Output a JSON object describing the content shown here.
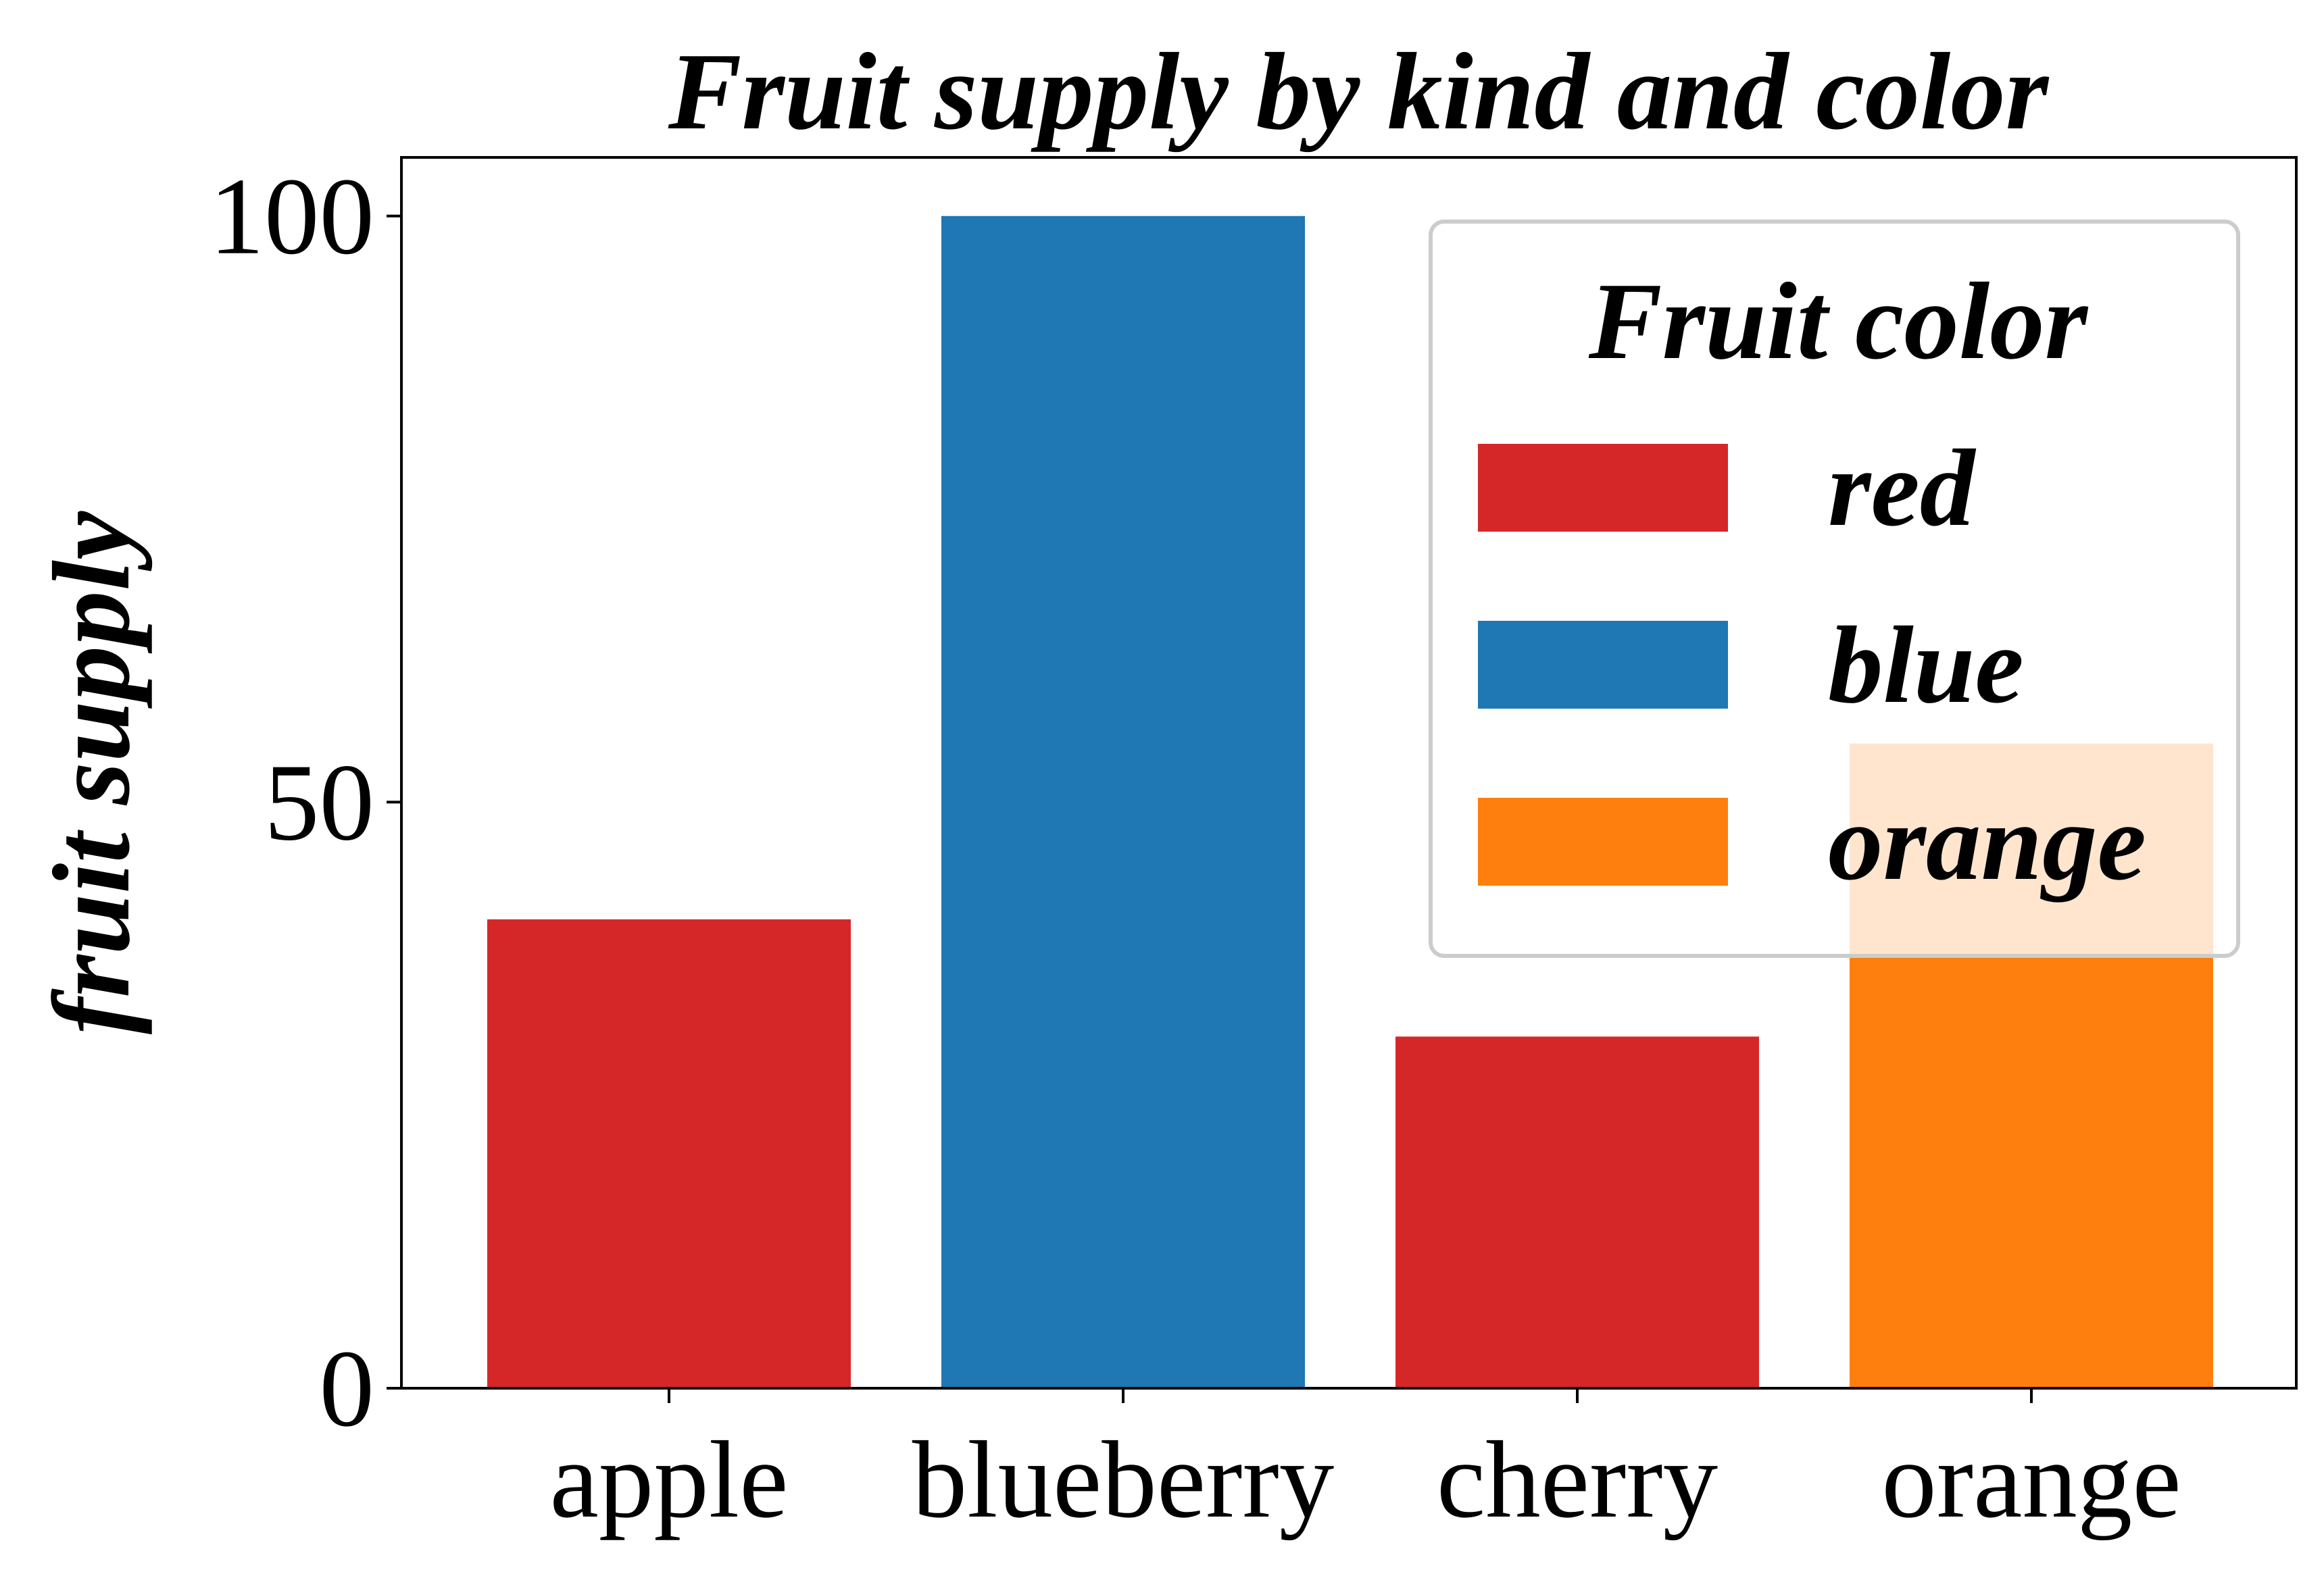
{
  "chart_data": {
    "type": "bar",
    "title": "Fruit supply by kind and color",
    "xlabel": "",
    "ylabel": "fruit supply",
    "ylim": [
      0,
      105
    ],
    "yticks": [
      0,
      50,
      100
    ],
    "ytick_labels": [
      "0",
      "50",
      "100"
    ],
    "categories": [
      "apple",
      "blueberry",
      "cherry",
      "orange"
    ],
    "values": [
      40,
      100,
      30,
      55
    ],
    "bar_colors": [
      "#d62728",
      "#1f77b4",
      "#d62728",
      "#ff7f0e"
    ],
    "grid": false,
    "legend": {
      "title": "Fruit color",
      "placement": "upper right",
      "entries": [
        {
          "label": "red",
          "color": "#d62728"
        },
        {
          "label": "blue",
          "color": "#1f77b4"
        },
        {
          "label": "orange",
          "color": "#ff7f0e"
        }
      ]
    }
  }
}
